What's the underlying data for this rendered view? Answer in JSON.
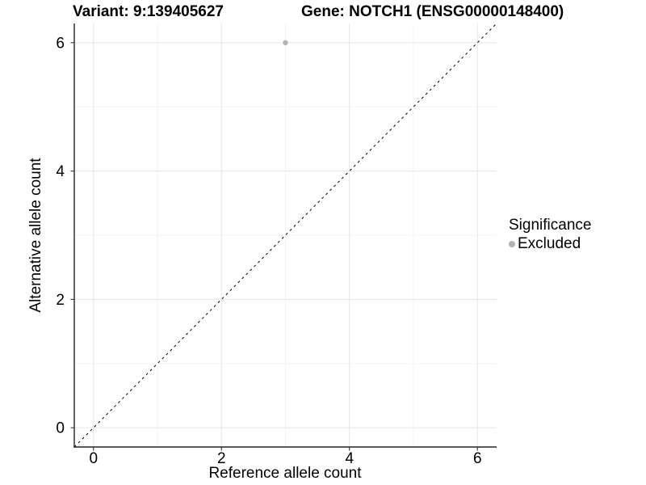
{
  "header": {
    "variant_title": "Variant: 9:139405627",
    "gene_title": "Gene: NOTCH1 (ENSG00000148400)"
  },
  "legend": {
    "title": "Significance",
    "entries": [
      {
        "label": "Excluded",
        "color": "#b3b3b3",
        "marker": "circle"
      }
    ]
  },
  "chart_data": {
    "type": "scatter",
    "title_left": "Variant: 9:139405627",
    "title_right": "Gene: NOTCH1 (ENSG00000148400)",
    "xlabel": "Reference allele count",
    "ylabel": "Alternative allele count",
    "xlim": [
      -0.3,
      6.3
    ],
    "ylim": [
      -0.3,
      6.3
    ],
    "x_ticks": [
      0,
      2,
      4,
      6
    ],
    "y_ticks": [
      0,
      2,
      4,
      6
    ],
    "x_minor_ticks": [
      1,
      3,
      5
    ],
    "y_minor_ticks": [
      1,
      3,
      5
    ],
    "grid": true,
    "legend_position": "right",
    "series": [
      {
        "name": "Excluded",
        "color": "#b3b3b3",
        "points": [
          {
            "x": 3,
            "y": 6
          }
        ]
      }
    ],
    "reference_line": {
      "type": "identity",
      "style": "dashed",
      "from": [
        -0.3,
        -0.3
      ],
      "to": [
        6.3,
        6.3
      ],
      "color": "#000000"
    },
    "colors": {
      "background": "#ffffff",
      "grid_major": "#e8e8e8",
      "grid_minor": "#f2f2f2",
      "axis": "#222222",
      "tick": "#333333",
      "text": "#000000",
      "point": "#b3b3b3"
    }
  }
}
